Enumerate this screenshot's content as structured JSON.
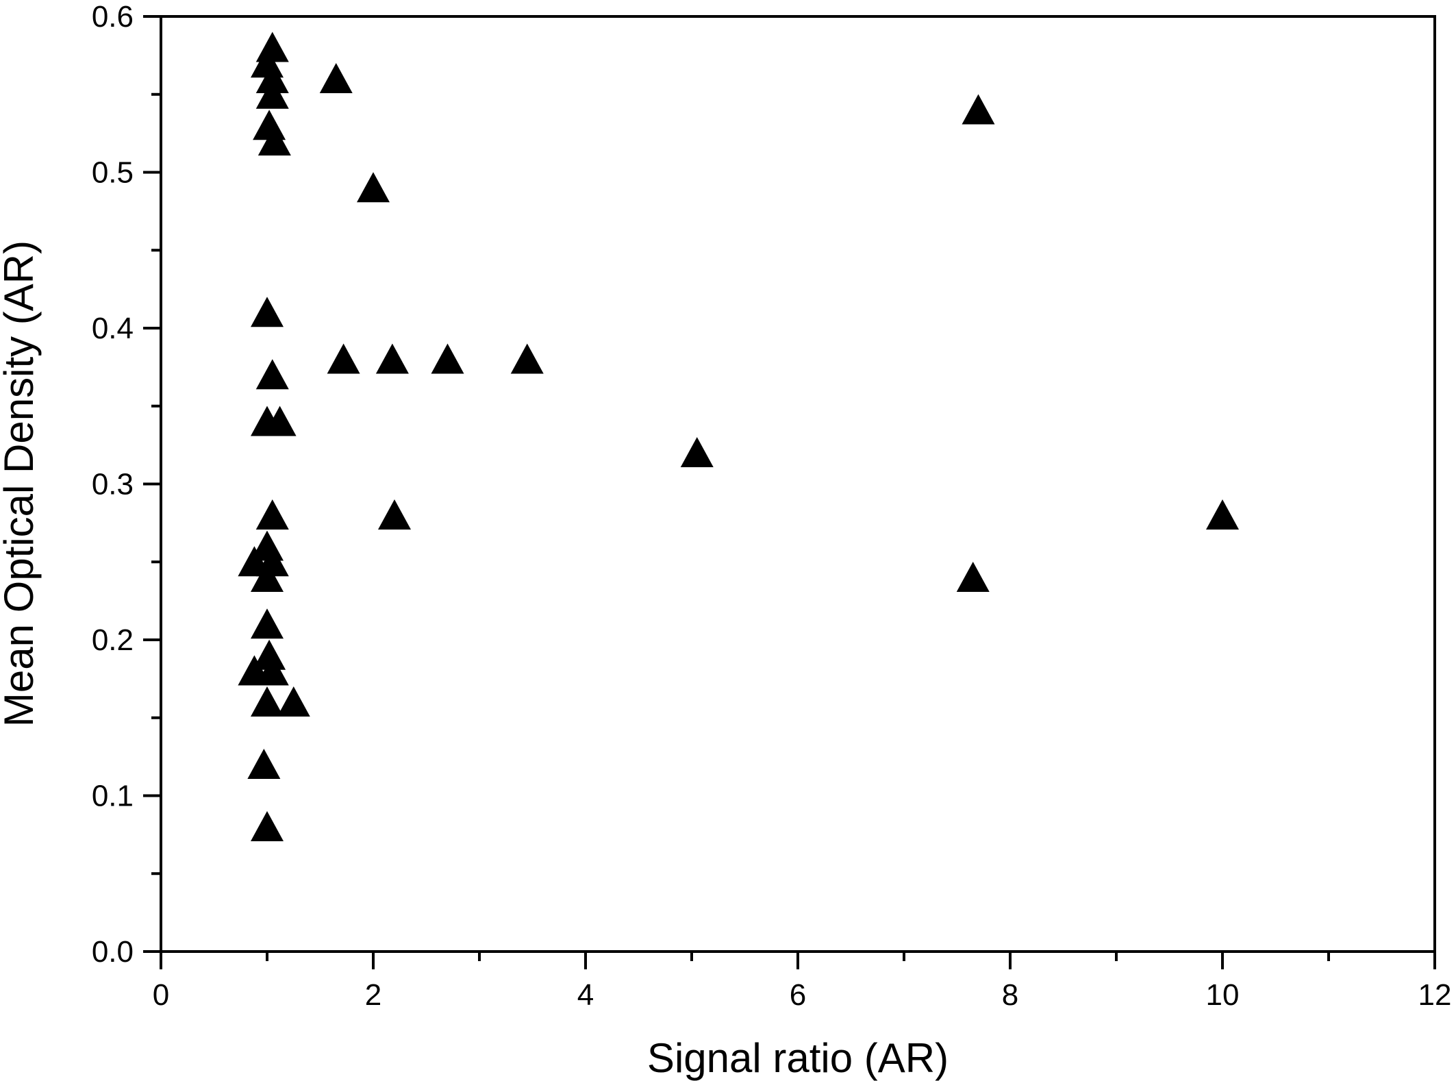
{
  "chart_data": {
    "type": "scatter",
    "xlabel": "Signal ratio (AR)",
    "ylabel": "Mean Optical Density (AR)",
    "xlim": [
      0,
      12
    ],
    "ylim": [
      0,
      0.6
    ],
    "x_ticks": [
      0,
      2,
      4,
      6,
      8,
      10,
      12
    ],
    "x_tick_labels": [
      "0",
      "2",
      "4",
      "6",
      "8",
      "10",
      "12"
    ],
    "y_ticks": [
      0.0,
      0.1,
      0.2,
      0.3,
      0.4,
      0.5,
      0.6
    ],
    "y_tick_labels": [
      "0.0",
      "0.1",
      "0.2",
      "0.3",
      "0.4",
      "0.5",
      "0.6"
    ],
    "grid": false,
    "marker": "triangle",
    "marker_color": "#000000",
    "series": [
      {
        "points": [
          {
            "x": 1.05,
            "y": 0.58
          },
          {
            "x": 1.0,
            "y": 0.57
          },
          {
            "x": 1.05,
            "y": 0.56
          },
          {
            "x": 1.65,
            "y": 0.56
          },
          {
            "x": 1.05,
            "y": 0.55
          },
          {
            "x": 7.7,
            "y": 0.54
          },
          {
            "x": 1.02,
            "y": 0.53
          },
          {
            "x": 1.07,
            "y": 0.52
          },
          {
            "x": 2.0,
            "y": 0.49
          },
          {
            "x": 1.0,
            "y": 0.41
          },
          {
            "x": 1.72,
            "y": 0.38
          },
          {
            "x": 2.18,
            "y": 0.38
          },
          {
            "x": 2.7,
            "y": 0.38
          },
          {
            "x": 3.45,
            "y": 0.38
          },
          {
            "x": 1.05,
            "y": 0.37
          },
          {
            "x": 1.0,
            "y": 0.34
          },
          {
            "x": 1.12,
            "y": 0.34
          },
          {
            "x": 5.05,
            "y": 0.32
          },
          {
            "x": 1.05,
            "y": 0.28
          },
          {
            "x": 2.2,
            "y": 0.28
          },
          {
            "x": 10.0,
            "y": 0.28
          },
          {
            "x": 1.0,
            "y": 0.26
          },
          {
            "x": 0.88,
            "y": 0.25
          },
          {
            "x": 1.05,
            "y": 0.25
          },
          {
            "x": 1.0,
            "y": 0.24
          },
          {
            "x": 7.65,
            "y": 0.24
          },
          {
            "x": 1.0,
            "y": 0.21
          },
          {
            "x": 1.02,
            "y": 0.19
          },
          {
            "x": 0.88,
            "y": 0.18
          },
          {
            "x": 1.05,
            "y": 0.18
          },
          {
            "x": 1.0,
            "y": 0.16
          },
          {
            "x": 1.25,
            "y": 0.16
          },
          {
            "x": 0.97,
            "y": 0.12
          },
          {
            "x": 1.0,
            "y": 0.08
          }
        ]
      }
    ]
  }
}
